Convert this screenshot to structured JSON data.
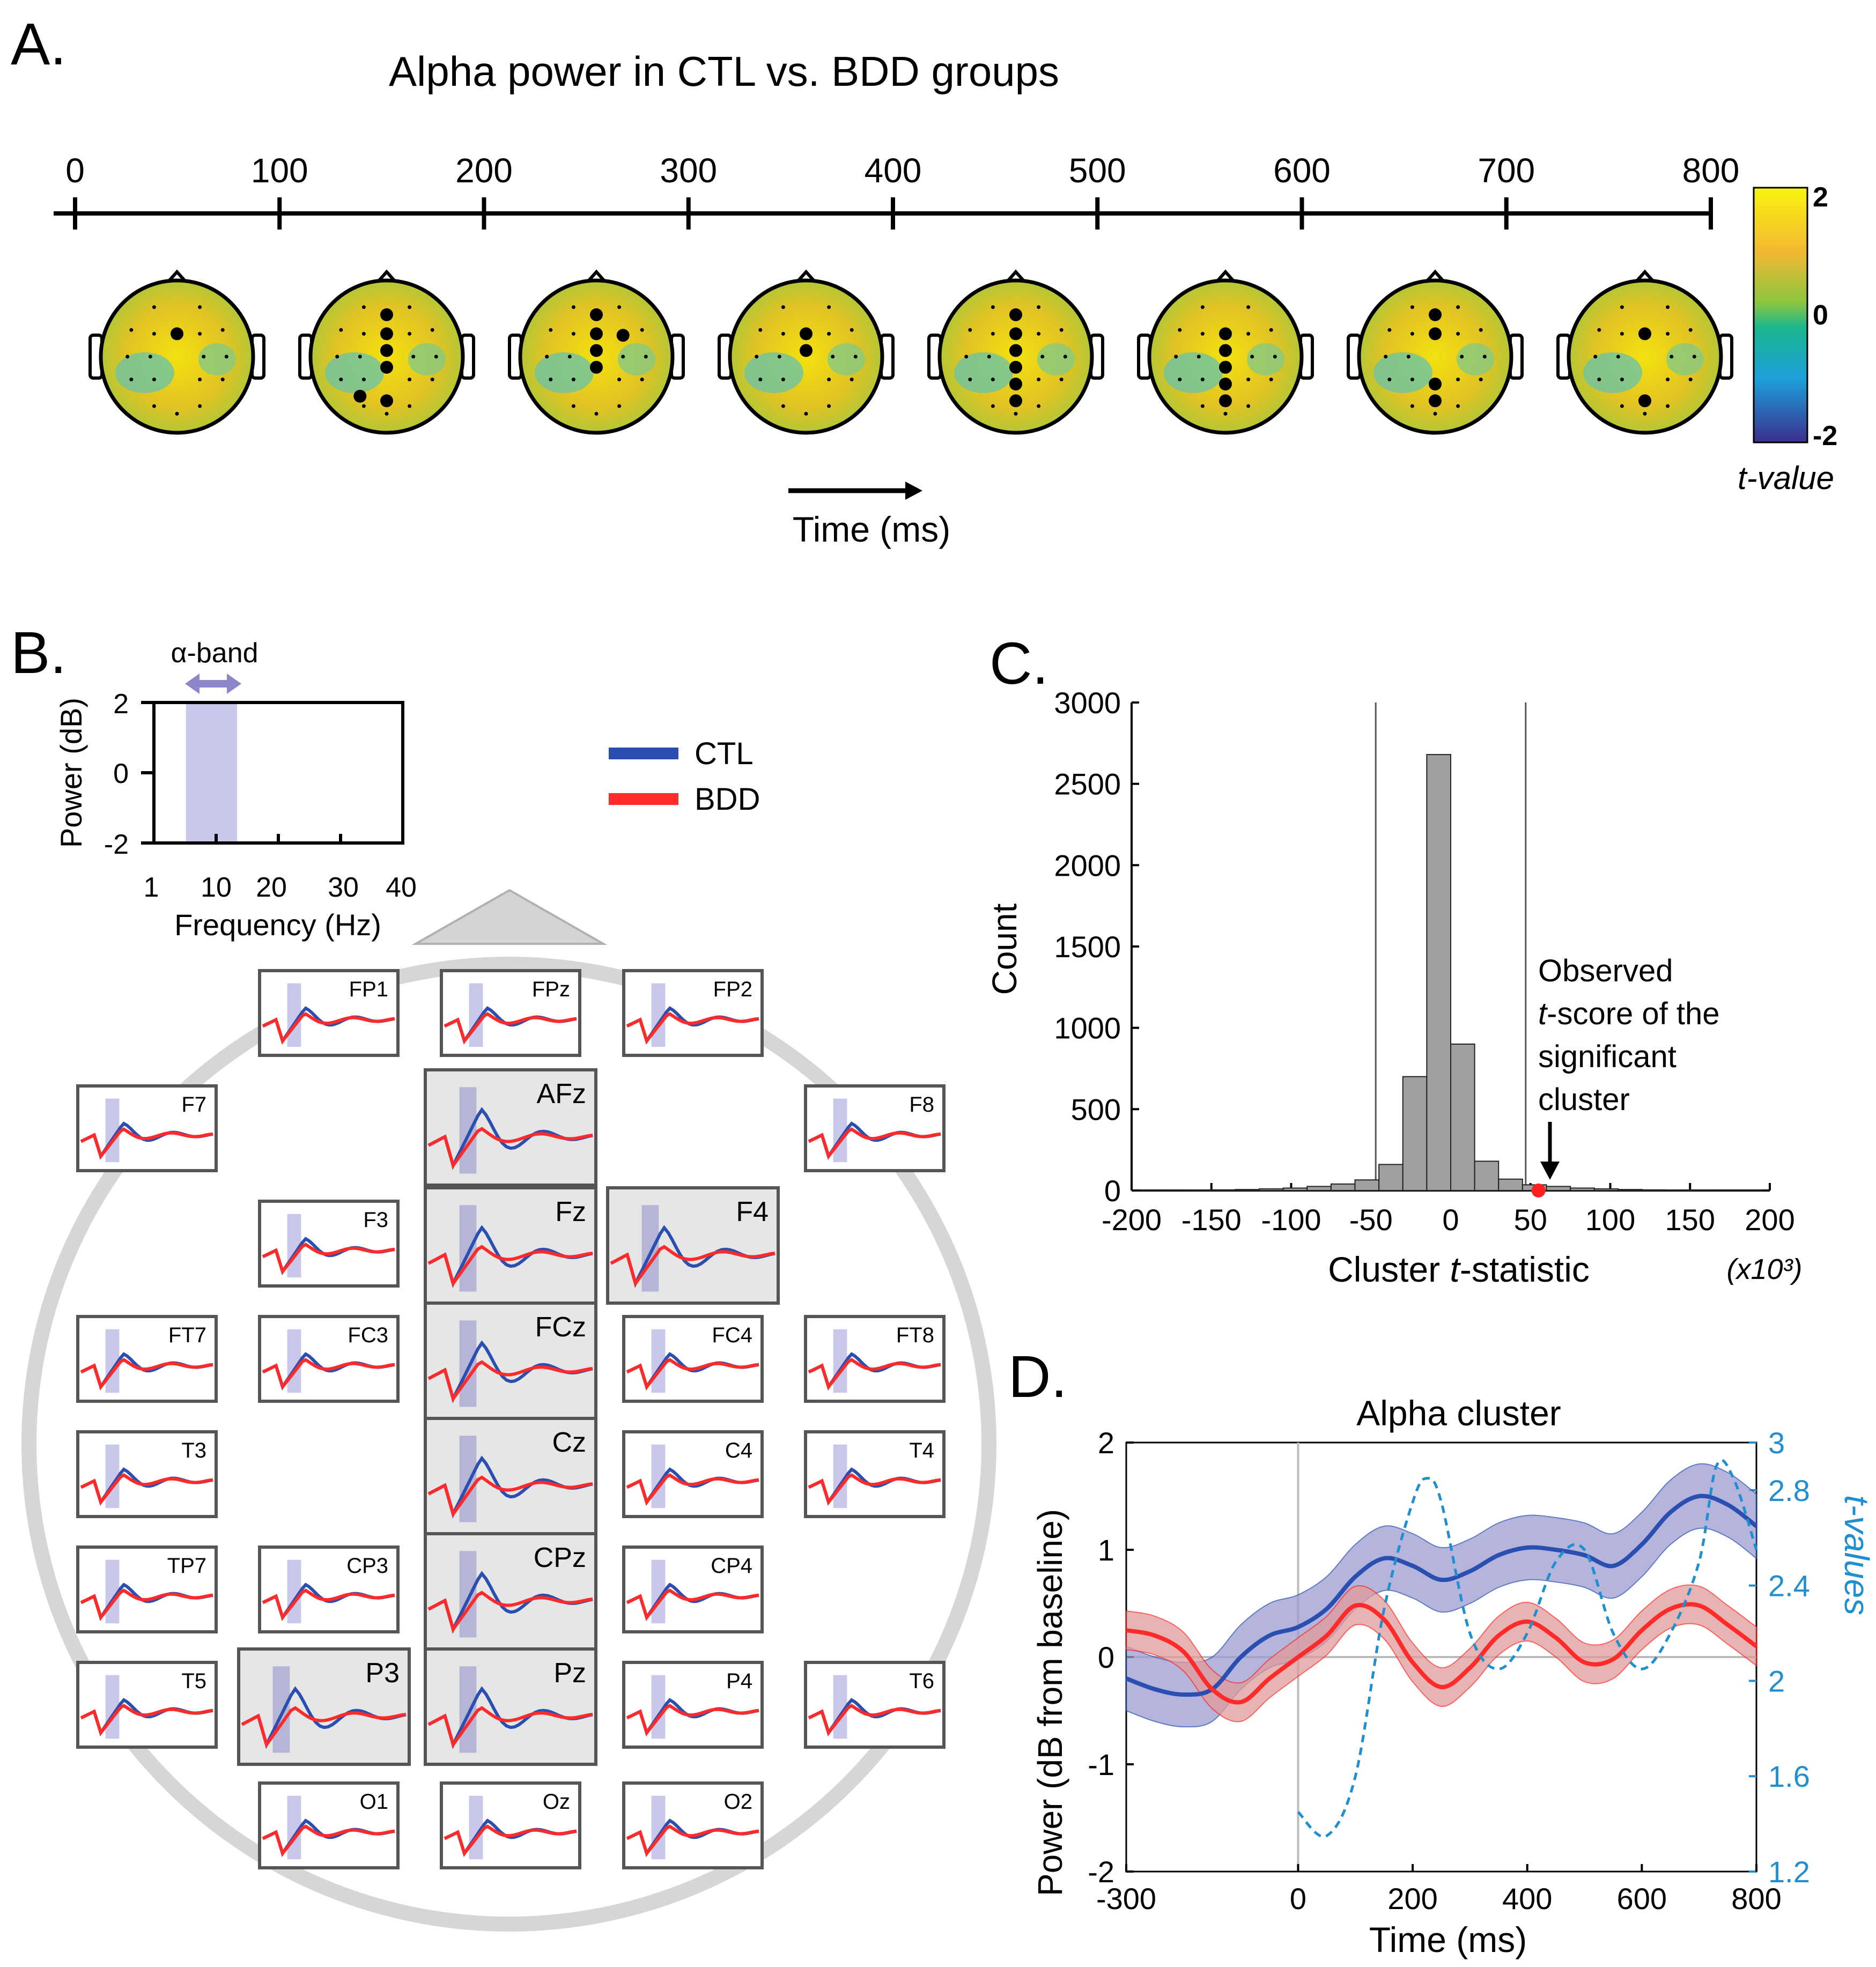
{
  "panelA": {
    "letter": "A.",
    "title": "Alpha power in CTL vs. BDD groups",
    "time_ticks": [
      "0",
      "100",
      "200",
      "300",
      "400",
      "500",
      "600",
      "700",
      "800"
    ],
    "time_label": "Time (ms)",
    "colorbar": {
      "max": "2",
      "mid": "0",
      "min": "-2",
      "label": "t-value"
    },
    "topomaps": [
      {
        "window": "0-100",
        "significant_electrodes": [
          "Fz"
        ]
      },
      {
        "window": "100-200",
        "significant_electrodes": [
          "AFz",
          "Fz",
          "FCz",
          "Cz",
          "P3",
          "Pz"
        ]
      },
      {
        "window": "200-300",
        "significant_electrodes": [
          "AFz",
          "Fz",
          "FCz",
          "Cz",
          "F4"
        ]
      },
      {
        "window": "300-400",
        "significant_electrodes": [
          "Fz",
          "FCz"
        ]
      },
      {
        "window": "400-500",
        "significant_electrodes": [
          "AFz",
          "Fz",
          "FCz",
          "Cz",
          "CPz",
          "Pz"
        ]
      },
      {
        "window": "500-600",
        "significant_electrodes": [
          "Fz",
          "FCz",
          "Cz",
          "CPz",
          "Pz"
        ]
      },
      {
        "window": "600-700",
        "significant_electrodes": [
          "AFz",
          "Fz",
          "CPz",
          "Pz"
        ]
      },
      {
        "window": "700-800",
        "significant_electrodes": [
          "Fz",
          "Pz"
        ]
      }
    ]
  },
  "panelB": {
    "letter": "B.",
    "inset": {
      "band_label": "α-band",
      "ylabel": "Power (dB)",
      "xlabel": "Frequency (Hz)",
      "yticks": [
        "2",
        "0",
        "-2"
      ],
      "xticks": [
        "1",
        "10",
        "20",
        "30",
        "40"
      ]
    },
    "legend": [
      {
        "label": "CTL",
        "color": "#2a4fb0"
      },
      {
        "label": "BDD",
        "color": "#ff2a2a"
      }
    ],
    "electrodes": [
      "FP1",
      "FPz",
      "FP2",
      "F7",
      "AFz",
      "F8",
      "F3",
      "Fz",
      "F4",
      "FT7",
      "FC3",
      "FCz",
      "FC4",
      "FT8",
      "T3",
      "Cz",
      "C4",
      "T4",
      "TP7",
      "CP3",
      "CPz",
      "CP4",
      "T5",
      "P3",
      "Pz",
      "P4",
      "T6",
      "O1",
      "Oz",
      "O2"
    ],
    "highlighted": [
      "AFz",
      "Fz",
      "F4",
      "FCz",
      "Cz",
      "CPz",
      "P3",
      "Pz"
    ]
  },
  "panelC": {
    "letter": "C.",
    "chart_data": {
      "type": "bar",
      "xlabel_main": "Cluster ",
      "xlabel_italic": "t",
      "xlabel_rest": "-statistic",
      "xunit": "(x10³)",
      "ylabel": "Count",
      "xlim": [
        -200,
        200
      ],
      "ylim": [
        0,
        3000
      ],
      "xticks": [
        "-200",
        "-150",
        "-100",
        "-50",
        "0",
        "50",
        "100",
        "150",
        "200"
      ],
      "yticks": [
        "0",
        "500",
        "1000",
        "1500",
        "2000",
        "2500",
        "3000"
      ],
      "bin_width": 15,
      "bin_centers": [
        -187.5,
        -172.5,
        -157.5,
        -142.5,
        -127.5,
        -112.5,
        -97.5,
        -82.5,
        -67.5,
        -52.5,
        -37.5,
        -22.5,
        -7.5,
        7.5,
        22.5,
        37.5,
        52.5,
        67.5,
        82.5,
        97.5,
        112.5,
        127.5,
        142.5,
        157.5,
        172.5,
        187.5
      ],
      "counts": [
        1,
        2,
        3,
        4,
        6,
        10,
        15,
        25,
        40,
        65,
        160,
        700,
        2680,
        900,
        180,
        70,
        35,
        25,
        15,
        10,
        6,
        4,
        3,
        2,
        1,
        1
      ],
      "threshold_lines": [
        -47,
        47
      ],
      "observed_value": 55,
      "annotation": {
        "line1": "Observed",
        "line2_italic": "t",
        "line2_rest": "-score of the",
        "line3": "significant",
        "line4": "cluster"
      }
    }
  },
  "panelD": {
    "letter": "D.",
    "chart_data": {
      "type": "line",
      "title": "Alpha cluster",
      "xlabel": "Time (ms)",
      "ylabel": "Power (dB from baseline)",
      "y2label": "t-values",
      "xlim": [
        -300,
        800
      ],
      "ylim": [
        -2,
        2
      ],
      "y2lim": [
        1.2,
        3
      ],
      "xticks": [
        "-300",
        "0",
        "200",
        "400",
        "600",
        "800"
      ],
      "yticks": [
        "-2",
        "-1",
        "0",
        "1",
        "2"
      ],
      "y2ticks": [
        "1.2",
        "1.6",
        "2",
        "2.4",
        "2.8",
        "3"
      ],
      "x": [
        -300,
        -250,
        -200,
        -150,
        -100,
        -50,
        0,
        50,
        100,
        150,
        200,
        250,
        300,
        350,
        400,
        450,
        500,
        550,
        600,
        650,
        700,
        750,
        800
      ],
      "series": [
        {
          "name": "CTL",
          "color": "#2a4fb0",
          "values": [
            -0.2,
            -0.3,
            -0.35,
            -0.3,
            0.0,
            0.2,
            0.28,
            0.45,
            0.75,
            0.92,
            0.85,
            0.72,
            0.8,
            0.95,
            1.02,
            1.0,
            0.95,
            0.85,
            1.05,
            1.35,
            1.5,
            1.42,
            1.22
          ],
          "error": 0.3
        },
        {
          "name": "BDD",
          "color": "#ff2a2a",
          "values": [
            0.25,
            0.2,
            0.05,
            -0.3,
            -0.42,
            -0.2,
            0.0,
            0.2,
            0.48,
            0.35,
            -0.05,
            -0.28,
            -0.1,
            0.2,
            0.33,
            0.18,
            -0.05,
            -0.02,
            0.25,
            0.45,
            0.48,
            0.3,
            0.1
          ],
          "error": 0.18
        }
      ],
      "t_series": {
        "name": "t-values",
        "color": "#1f8fcf",
        "x": [
          0,
          50,
          100,
          150,
          200,
          225,
          250,
          300,
          350,
          400,
          450,
          500,
          550,
          600,
          650,
          700,
          730,
          760,
          800
        ],
        "values": [
          1.45,
          1.35,
          1.6,
          2.3,
          2.75,
          2.85,
          2.75,
          2.2,
          2.05,
          2.2,
          2.5,
          2.55,
          2.2,
          2.05,
          2.2,
          2.5,
          2.9,
          2.85,
          2.55
        ]
      }
    }
  }
}
